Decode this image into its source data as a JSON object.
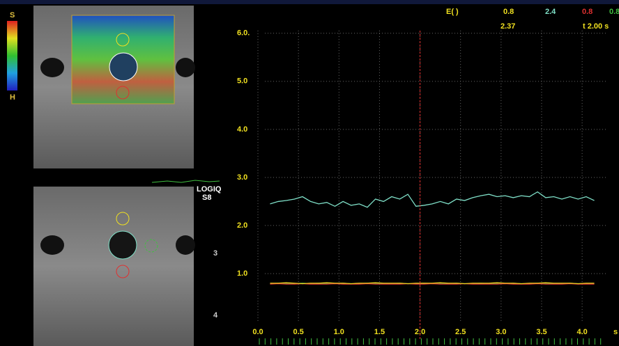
{
  "colorbar": {
    "top": "S",
    "bottom": "H"
  },
  "probe": {
    "brand": "LOGIQ",
    "model": "S8"
  },
  "depth_marks": [
    "3",
    "4"
  ],
  "readout": {
    "label": "E( )",
    "values": [
      "0.8",
      "2.4",
      "0.8",
      "0.8"
    ],
    "current": "2.37",
    "time": "t 2.00 s"
  },
  "chart_data": {
    "type": "line",
    "x_label": "s",
    "cursor_x": 2,
    "xlim": [
      0,
      4.3
    ],
    "ylim": [
      0,
      6.2
    ],
    "xticks": [
      {
        "value": 0,
        "label": "0.0"
      },
      0.5,
      {
        "value": 1,
        "label": "1.0"
      },
      1.5,
      {
        "value": 2,
        "label": "2.0"
      },
      2.5,
      {
        "value": 3,
        "label": "3.0"
      },
      3.5,
      {
        "value": 4,
        "label": "4.0"
      }
    ],
    "yticks": [
      {
        "value": 1,
        "label": "1.0"
      },
      {
        "value": 2,
        "label": "2.0"
      },
      {
        "value": 3,
        "label": "3.0"
      },
      {
        "value": 4,
        "label": "4.0"
      },
      {
        "value": 5,
        "label": "5.0"
      },
      {
        "value": 6,
        "label": "6.0."
      }
    ],
    "grid": true,
    "x": [
      0.15,
      0.25,
      0.35,
      0.45,
      0.55,
      0.65,
      0.75,
      0.85,
      0.95,
      1.05,
      1.15,
      1.25,
      1.35,
      1.45,
      1.55,
      1.65,
      1.75,
      1.85,
      1.95,
      2.05,
      2.15,
      2.25,
      2.35,
      2.45,
      2.55,
      2.65,
      2.75,
      2.85,
      2.95,
      3.05,
      3.15,
      3.25,
      3.35,
      3.45,
      3.55,
      3.65,
      3.75,
      3.85,
      3.95,
      4.05,
      4.15
    ],
    "series": [
      {
        "color": "#7fe0c8",
        "values": [
          2.45,
          2.5,
          2.52,
          2.55,
          2.6,
          2.5,
          2.45,
          2.48,
          2.4,
          2.5,
          2.42,
          2.45,
          2.38,
          2.55,
          2.5,
          2.6,
          2.55,
          2.65,
          2.4,
          2.42,
          2.45,
          2.5,
          2.45,
          2.55,
          2.52,
          2.58,
          2.62,
          2.65,
          2.6,
          2.62,
          2.58,
          2.62,
          2.6,
          2.7,
          2.58,
          2.6,
          2.55,
          2.6,
          2.55,
          2.6,
          2.52
        ]
      },
      {
        "color": "#e8d020",
        "values": [
          0.8,
          0.8,
          0.81,
          0.8,
          0.79,
          0.8,
          0.8,
          0.81,
          0.8,
          0.8,
          0.79,
          0.8,
          0.8,
          0.81,
          0.8,
          0.8,
          0.8,
          0.79,
          0.8,
          0.8,
          0.8,
          0.81,
          0.8,
          0.8,
          0.79,
          0.8,
          0.8,
          0.8,
          0.81,
          0.8,
          0.8,
          0.79,
          0.8,
          0.8,
          0.81,
          0.8,
          0.8,
          0.8,
          0.79,
          0.8,
          0.8
        ]
      },
      {
        "color": "#e03030",
        "values": [
          0.78,
          0.79,
          0.78,
          0.78,
          0.79,
          0.78,
          0.78,
          0.78,
          0.79,
          0.78,
          0.78,
          0.78,
          0.79,
          0.78,
          0.78,
          0.78,
          0.78,
          0.79,
          0.78,
          0.78,
          0.79,
          0.78,
          0.78,
          0.78,
          0.79,
          0.78,
          0.78,
          0.78,
          0.78,
          0.79,
          0.78,
          0.78,
          0.78,
          0.79,
          0.78,
          0.78,
          0.78,
          0.79,
          0.78,
          0.78,
          0.78
        ]
      },
      {
        "color": "#40c040",
        "values": [
          0.79,
          0.8,
          0.79,
          0.79,
          0.8,
          0.79,
          0.8,
          0.79,
          0.79,
          0.8,
          0.79,
          0.79,
          0.8,
          0.79,
          0.79,
          0.79,
          0.8,
          0.79,
          0.79,
          0.8,
          0.79,
          0.79,
          0.79,
          0.8,
          0.79,
          0.79,
          0.8,
          0.79,
          0.79,
          0.79,
          0.8,
          0.79,
          0.79,
          0.8,
          0.79,
          0.79,
          0.79,
          0.8,
          0.79,
          0.79,
          0.79
        ]
      }
    ]
  }
}
